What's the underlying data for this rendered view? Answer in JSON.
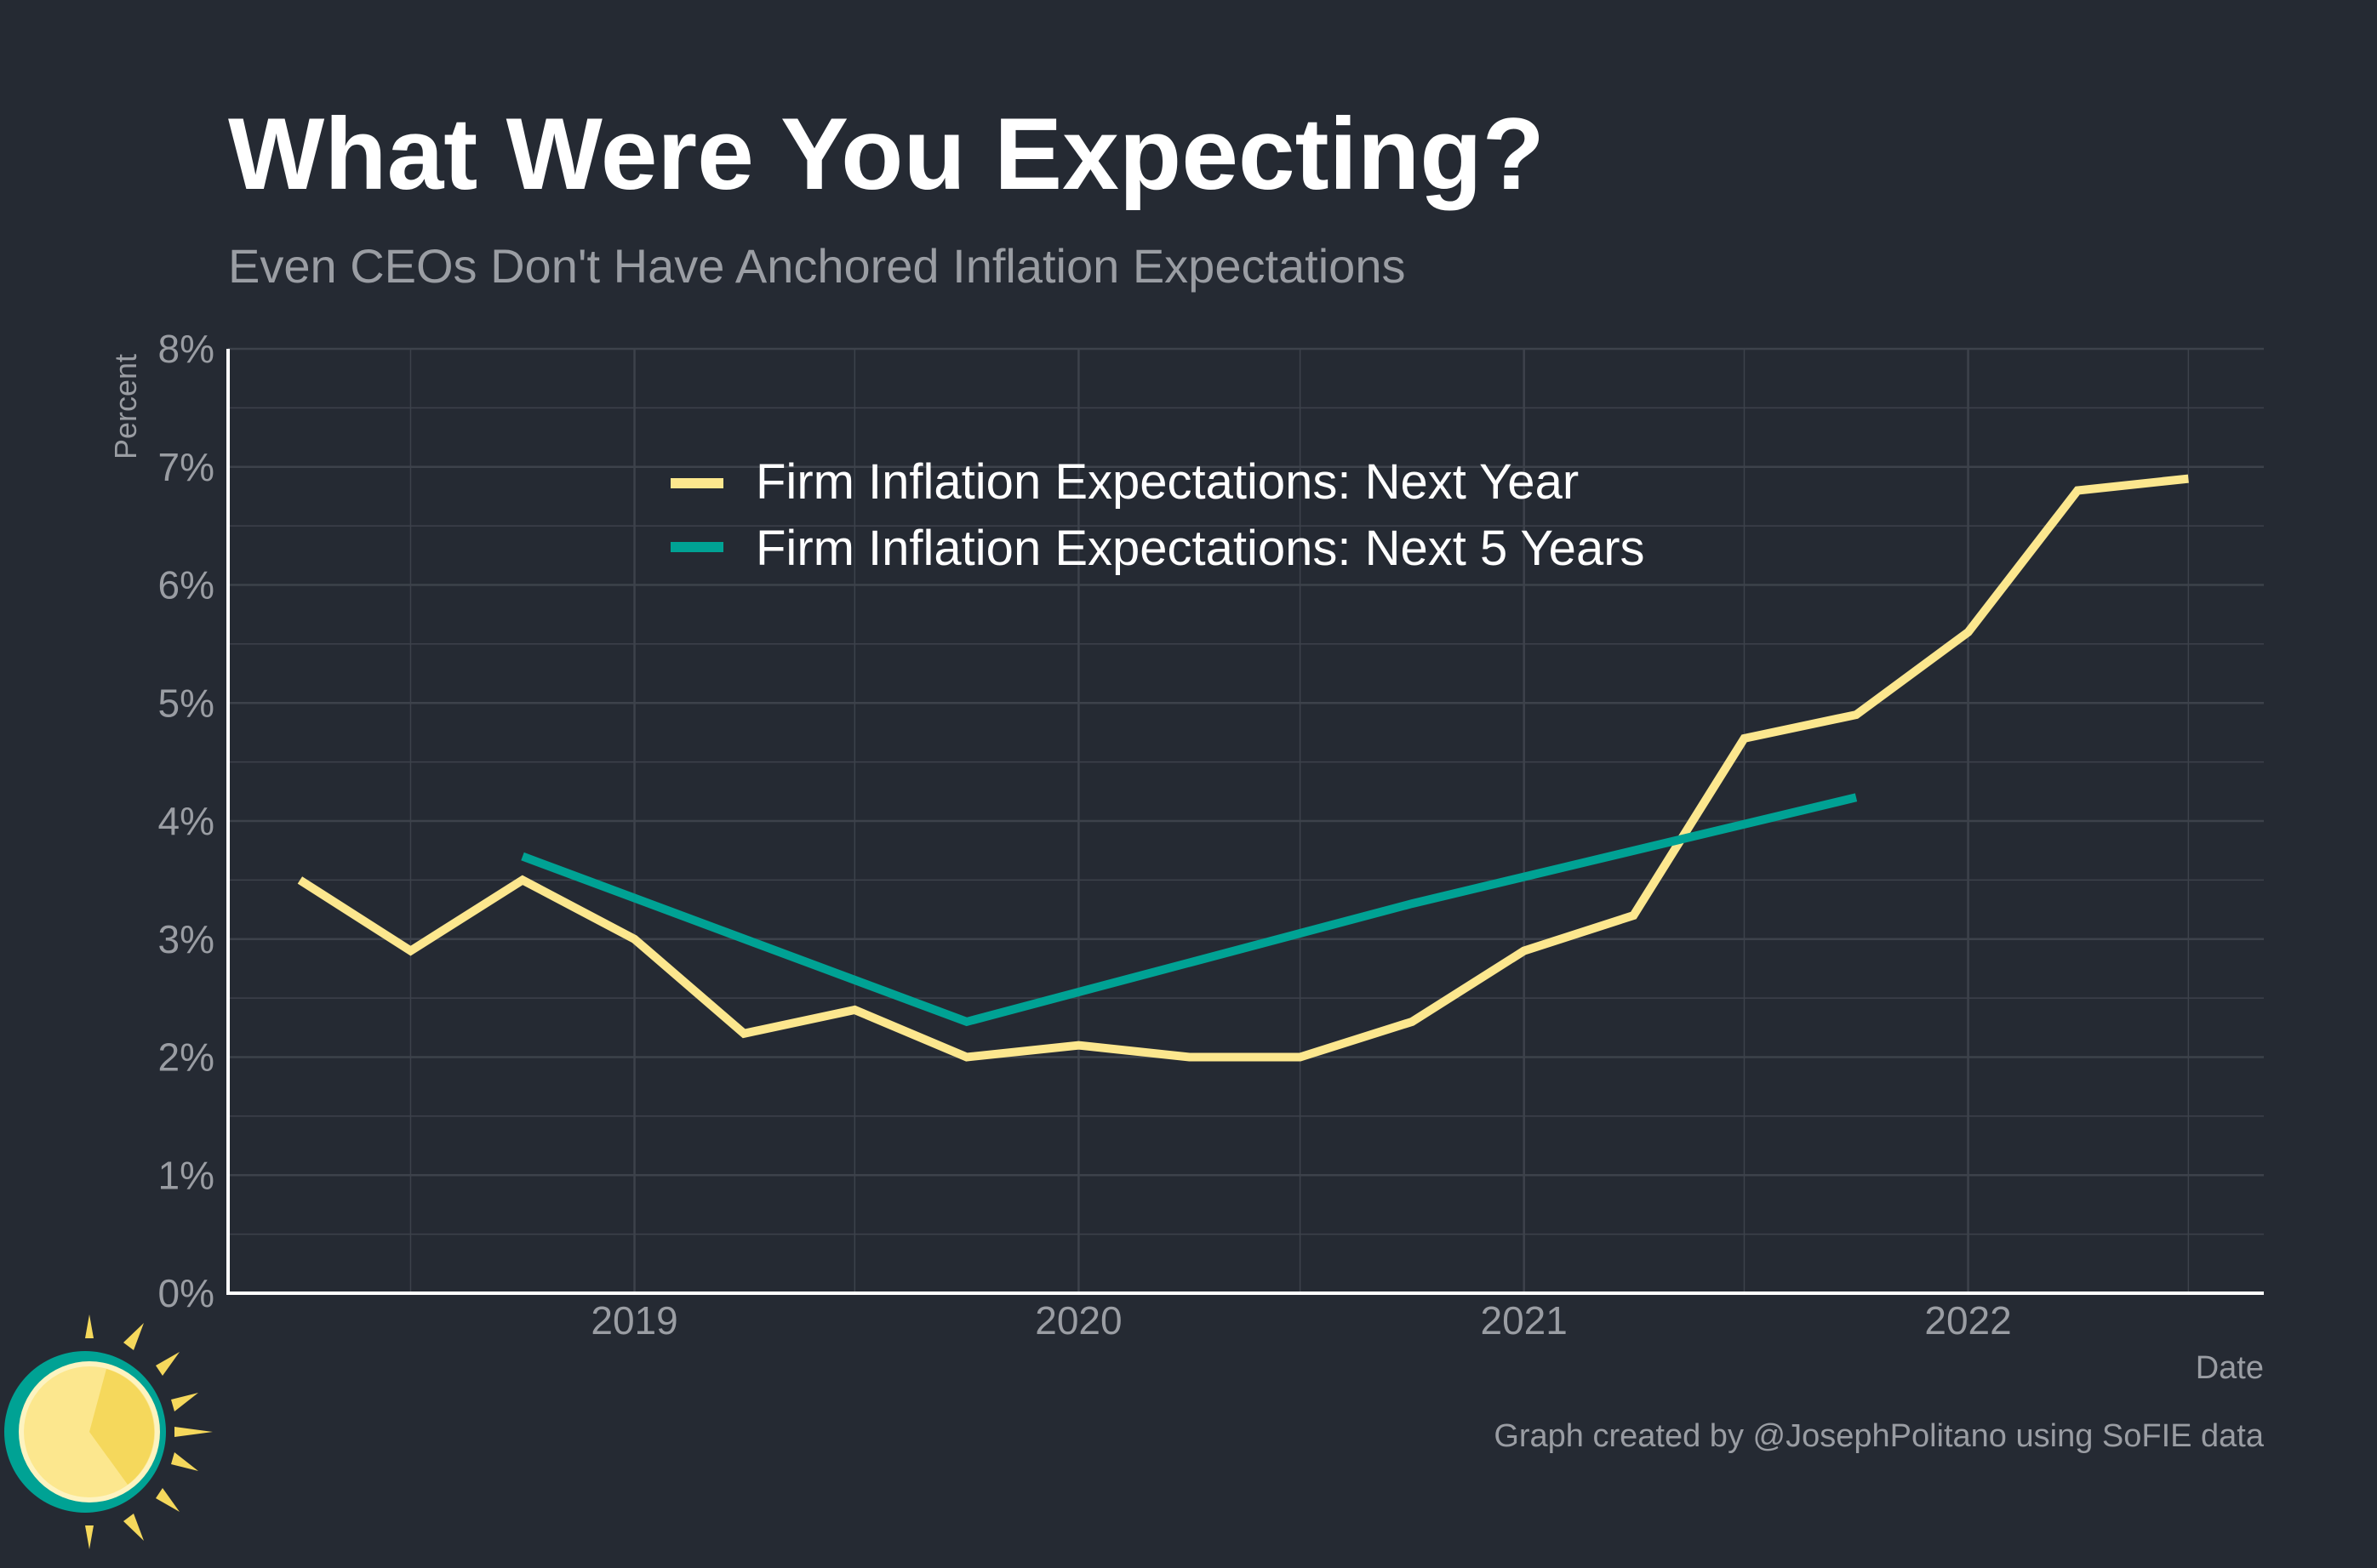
{
  "title": "What Were You Expecting?",
  "subtitle": "Even CEOs Don't Have Anchored Inflation Expectations",
  "caption": "Graph created by @JosephPolitano using SoFIE data",
  "colors": {
    "background": "#252a33",
    "next_year": "#fce78e",
    "next_5_years": "#00a294",
    "grid": "#3d424b",
    "axis": "#ffffff",
    "muted_text": "#9a9da3"
  },
  "chart_data": {
    "type": "line",
    "title": "What Were You Expecting?",
    "subtitle": "Even CEOs Don't Have Anchored Inflation Expectations",
    "xlabel": "Date",
    "ylabel": "Percent",
    "xlim": [
      "2018-02-01",
      "2022-09-01"
    ],
    "ylim": [
      0,
      8
    ],
    "x_ticks": [
      {
        "date": "2019-01-01",
        "label": "2019"
      },
      {
        "date": "2020-01-01",
        "label": "2020"
      },
      {
        "date": "2021-01-01",
        "label": "2021"
      },
      {
        "date": "2022-01-01",
        "label": "2022"
      }
    ],
    "y_ticks": [
      {
        "value": 0,
        "label": "0%"
      },
      {
        "value": 1,
        "label": "1%"
      },
      {
        "value": 2,
        "label": "2%"
      },
      {
        "value": 3,
        "label": "3%"
      },
      {
        "value": 4,
        "label": "4%"
      },
      {
        "value": 5,
        "label": "5%"
      },
      {
        "value": 6,
        "label": "6%"
      },
      {
        "value": 7,
        "label": "7%"
      },
      {
        "value": 8,
        "label": "8%"
      }
    ],
    "minor_x_gridlines": [
      "2018-07-01",
      "2019-07-01",
      "2020-07-01",
      "2021-07-01",
      "2022-07-01"
    ],
    "minor_y_gridlines": [
      0.5,
      1.5,
      2.5,
      3.5,
      4.5,
      5.5,
      6.5,
      7.5
    ],
    "grid": true,
    "legend": "top-center",
    "series": [
      {
        "name": "Firm Inflation Expectations: Next Year",
        "color": "#fce78e",
        "points": [
          {
            "x": "2018-04-01",
            "y": 3.5
          },
          {
            "x": "2018-07-01",
            "y": 2.9
          },
          {
            "x": "2018-10-01",
            "y": 3.5
          },
          {
            "x": "2019-01-01",
            "y": 3.0
          },
          {
            "x": "2019-04-01",
            "y": 2.2
          },
          {
            "x": "2019-07-01",
            "y": 2.4
          },
          {
            "x": "2019-10-01",
            "y": 2.0
          },
          {
            "x": "2020-01-01",
            "y": 2.1
          },
          {
            "x": "2020-04-01",
            "y": 2.0
          },
          {
            "x": "2020-07-01",
            "y": 2.0
          },
          {
            "x": "2020-10-01",
            "y": 2.3
          },
          {
            "x": "2021-01-01",
            "y": 2.9
          },
          {
            "x": "2021-04-01",
            "y": 3.2
          },
          {
            "x": "2021-07-01",
            "y": 4.7
          },
          {
            "x": "2021-10-01",
            "y": 4.9
          },
          {
            "x": "2022-01-01",
            "y": 5.6
          },
          {
            "x": "2022-04-01",
            "y": 6.8
          },
          {
            "x": "2022-07-01",
            "y": 6.9
          }
        ]
      },
      {
        "name": "Firm Inflation Expectations: Next 5 Years",
        "color": "#00a294",
        "points": [
          {
            "x": "2018-10-01",
            "y": 3.7
          },
          {
            "x": "2019-10-01",
            "y": 2.3
          },
          {
            "x": "2020-10-01",
            "y": 3.3
          },
          {
            "x": "2021-10-01",
            "y": 4.2
          }
        ]
      }
    ]
  }
}
